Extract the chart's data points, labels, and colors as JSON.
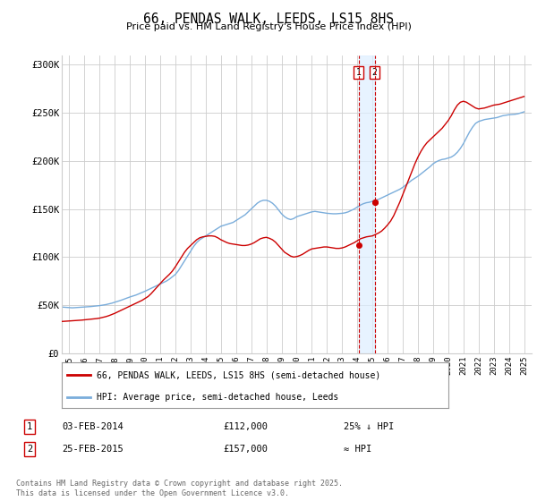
{
  "title": "66, PENDAS WALK, LEEDS, LS15 8HS",
  "subtitle": "Price paid vs. HM Land Registry's House Price Index (HPI)",
  "ylabel_ticks": [
    "£0",
    "£50K",
    "£100K",
    "£150K",
    "£200K",
    "£250K",
    "£300K"
  ],
  "ytick_values": [
    0,
    50000,
    100000,
    150000,
    200000,
    250000,
    300000
  ],
  "ylim": [
    0,
    310000
  ],
  "xlim_start": 1994.5,
  "xlim_end": 2025.5,
  "xtick_years": [
    1995,
    1996,
    1997,
    1998,
    1999,
    2000,
    2001,
    2002,
    2003,
    2004,
    2005,
    2006,
    2007,
    2008,
    2009,
    2010,
    2011,
    2012,
    2013,
    2014,
    2015,
    2016,
    2017,
    2018,
    2019,
    2020,
    2021,
    2022,
    2023,
    2024,
    2025
  ],
  "red_line_color": "#cc0000",
  "blue_line_color": "#7aaddb",
  "dashed_line_color": "#cc0000",
  "shade_color": "#ddeeff",
  "grid_color": "#cccccc",
  "background_color": "#ffffff",
  "sale1_year": 2014.09,
  "sale1_price": 112000,
  "sale1_label": "1",
  "sale1_date": "03-FEB-2014",
  "sale1_price_str": "£112,000",
  "sale1_pct": "25% ↓ HPI",
  "sale2_year": 2015.15,
  "sale2_price": 157000,
  "sale2_label": "2",
  "sale2_date": "25-FEB-2015",
  "sale2_price_str": "£157,000",
  "sale2_pct": "≈ HPI",
  "legend_line1": "66, PENDAS WALK, LEEDS, LS15 8HS (semi-detached house)",
  "legend_line2": "HPI: Average price, semi-detached house, Leeds",
  "copyright": "Contains HM Land Registry data © Crown copyright and database right 2025.\nThis data is licensed under the Open Government Licence v3.0.",
  "hpi_data_x": [
    1994.5,
    1995.0,
    1995.2,
    1995.4,
    1995.6,
    1995.8,
    1996.0,
    1996.2,
    1996.4,
    1996.6,
    1996.8,
    1997.0,
    1997.2,
    1997.4,
    1997.6,
    1997.8,
    1998.0,
    1998.2,
    1998.4,
    1998.6,
    1998.8,
    1999.0,
    1999.2,
    1999.4,
    1999.6,
    1999.8,
    2000.0,
    2000.2,
    2000.4,
    2000.6,
    2000.8,
    2001.0,
    2001.2,
    2001.4,
    2001.6,
    2001.8,
    2002.0,
    2002.2,
    2002.4,
    2002.6,
    2002.8,
    2003.0,
    2003.2,
    2003.4,
    2003.6,
    2003.8,
    2004.0,
    2004.2,
    2004.4,
    2004.6,
    2004.8,
    2005.0,
    2005.2,
    2005.4,
    2005.6,
    2005.8,
    2006.0,
    2006.2,
    2006.4,
    2006.6,
    2006.8,
    2007.0,
    2007.2,
    2007.4,
    2007.6,
    2007.8,
    2008.0,
    2008.2,
    2008.4,
    2008.6,
    2008.8,
    2009.0,
    2009.2,
    2009.4,
    2009.6,
    2009.8,
    2010.0,
    2010.2,
    2010.4,
    2010.6,
    2010.8,
    2011.0,
    2011.2,
    2011.4,
    2011.6,
    2011.8,
    2012.0,
    2012.2,
    2012.4,
    2012.6,
    2012.8,
    2013.0,
    2013.2,
    2013.4,
    2013.6,
    2013.8,
    2014.0,
    2014.2,
    2014.4,
    2014.6,
    2014.8,
    2015.0,
    2015.2,
    2015.4,
    2015.6,
    2015.8,
    2016.0,
    2016.2,
    2016.4,
    2016.6,
    2016.8,
    2017.0,
    2017.2,
    2017.4,
    2017.6,
    2017.8,
    2018.0,
    2018.2,
    2018.4,
    2018.6,
    2018.8,
    2019.0,
    2019.2,
    2019.4,
    2019.6,
    2019.8,
    2020.0,
    2020.2,
    2020.4,
    2020.6,
    2020.8,
    2021.0,
    2021.2,
    2021.4,
    2021.6,
    2021.8,
    2022.0,
    2022.2,
    2022.4,
    2022.6,
    2022.8,
    2023.0,
    2023.2,
    2023.4,
    2023.6,
    2023.8,
    2024.0,
    2024.2,
    2024.4,
    2024.6,
    2024.8,
    2025.0
  ],
  "hpi_data_y": [
    48000,
    47500,
    47200,
    47400,
    47600,
    47800,
    48000,
    48200,
    48500,
    48800,
    49200,
    49500,
    50000,
    50500,
    51200,
    52000,
    53000,
    54000,
    55000,
    56200,
    57500,
    58500,
    59500,
    60500,
    61800,
    63000,
    64500,
    66000,
    67500,
    69000,
    70500,
    72000,
    73500,
    75000,
    77000,
    79500,
    82000,
    86000,
    91000,
    96000,
    101000,
    106000,
    111000,
    115000,
    118000,
    120000,
    122000,
    124000,
    126000,
    128000,
    130000,
    132000,
    133000,
    134000,
    135000,
    136000,
    138000,
    140000,
    142000,
    144000,
    147000,
    150000,
    153000,
    156000,
    158000,
    159000,
    159000,
    158000,
    156000,
    153000,
    149000,
    145000,
    142000,
    140000,
    139000,
    140000,
    142000,
    143000,
    144000,
    145000,
    146000,
    147000,
    147500,
    147000,
    146500,
    146000,
    145500,
    145200,
    145000,
    145000,
    145200,
    145500,
    146000,
    147000,
    148500,
    150000,
    152000,
    154000,
    155500,
    156500,
    157000,
    158000,
    159000,
    160000,
    161500,
    163000,
    164500,
    166000,
    167500,
    169000,
    170500,
    172500,
    175000,
    177500,
    180000,
    182000,
    184000,
    186500,
    189000,
    191500,
    194000,
    197000,
    199000,
    200500,
    201500,
    202000,
    203000,
    204000,
    206000,
    209000,
    213000,
    218000,
    224000,
    230000,
    235000,
    239000,
    241000,
    242000,
    243000,
    243500,
    244000,
    244500,
    245000,
    246000,
    247000,
    247500,
    248000,
    248200,
    248500,
    249000,
    250000,
    251000
  ],
  "red_data_x": [
    1994.5,
    1995.0,
    1995.2,
    1995.4,
    1995.6,
    1995.8,
    1996.0,
    1996.2,
    1996.4,
    1996.6,
    1996.8,
    1997.0,
    1997.2,
    1997.4,
    1997.6,
    1997.8,
    1998.0,
    1998.2,
    1998.4,
    1998.6,
    1998.8,
    1999.0,
    1999.2,
    1999.4,
    1999.6,
    1999.8,
    2000.0,
    2000.2,
    2000.4,
    2000.6,
    2000.8,
    2001.0,
    2001.2,
    2001.4,
    2001.6,
    2001.8,
    2002.0,
    2002.2,
    2002.4,
    2002.6,
    2002.8,
    2003.0,
    2003.2,
    2003.4,
    2003.6,
    2003.8,
    2004.0,
    2004.2,
    2004.4,
    2004.6,
    2004.8,
    2005.0,
    2005.2,
    2005.4,
    2005.6,
    2005.8,
    2006.0,
    2006.2,
    2006.4,
    2006.6,
    2006.8,
    2007.0,
    2007.2,
    2007.4,
    2007.6,
    2007.8,
    2008.0,
    2008.2,
    2008.4,
    2008.6,
    2008.8,
    2009.0,
    2009.2,
    2009.4,
    2009.6,
    2009.8,
    2010.0,
    2010.2,
    2010.4,
    2010.6,
    2010.8,
    2011.0,
    2011.2,
    2011.4,
    2011.6,
    2011.8,
    2012.0,
    2012.2,
    2012.4,
    2012.6,
    2012.8,
    2013.0,
    2013.2,
    2013.4,
    2013.6,
    2013.8,
    2014.0,
    2014.2,
    2014.4,
    2014.6,
    2014.8,
    2015.0,
    2015.2,
    2015.4,
    2015.6,
    2015.8,
    2016.0,
    2016.2,
    2016.4,
    2016.6,
    2016.8,
    2017.0,
    2017.2,
    2017.4,
    2017.6,
    2017.8,
    2018.0,
    2018.2,
    2018.4,
    2018.6,
    2018.8,
    2019.0,
    2019.2,
    2019.4,
    2019.6,
    2019.8,
    2020.0,
    2020.2,
    2020.4,
    2020.6,
    2020.8,
    2021.0,
    2021.2,
    2021.4,
    2021.6,
    2021.8,
    2022.0,
    2022.2,
    2022.4,
    2022.6,
    2022.8,
    2023.0,
    2023.2,
    2023.4,
    2023.6,
    2023.8,
    2024.0,
    2024.2,
    2024.4,
    2024.6,
    2024.8,
    2025.0
  ],
  "red_data_y": [
    33000,
    33500,
    33800,
    34000,
    34200,
    34400,
    34700,
    35000,
    35300,
    35600,
    36000,
    36500,
    37200,
    38000,
    39000,
    40200,
    41500,
    43000,
    44500,
    46000,
    47500,
    49000,
    50500,
    52000,
    53500,
    55000,
    57000,
    59000,
    62000,
    65500,
    69000,
    72500,
    76000,
    79000,
    82000,
    85500,
    90000,
    95000,
    100000,
    105000,
    109000,
    112000,
    115000,
    118000,
    120000,
    121000,
    121500,
    122000,
    122000,
    121500,
    120000,
    118000,
    116500,
    115000,
    114000,
    113500,
    113000,
    112500,
    112000,
    112000,
    112500,
    113500,
    115000,
    117000,
    119000,
    120000,
    120500,
    119500,
    118000,
    115500,
    112000,
    108500,
    105000,
    103000,
    101000,
    100000,
    100500,
    101500,
    103000,
    105000,
    107000,
    108500,
    109000,
    109500,
    110000,
    110500,
    110500,
    110000,
    109500,
    109000,
    109000,
    109500,
    110500,
    112000,
    113500,
    115000,
    117000,
    119000,
    120000,
    121000,
    121500,
    122000,
    123500,
    125000,
    127000,
    130000,
    133500,
    137500,
    143000,
    150000,
    157000,
    165000,
    173000,
    181000,
    189000,
    197000,
    204000,
    210000,
    215000,
    219000,
    222000,
    225000,
    228000,
    231000,
    234000,
    238000,
    242000,
    247000,
    253000,
    258000,
    261000,
    262000,
    261000,
    259000,
    257000,
    255000,
    254000,
    254500,
    255000,
    256000,
    257000,
    258000,
    258500,
    259000,
    260000,
    261000,
    262000,
    263000,
    264000,
    265000,
    266000,
    267000
  ]
}
